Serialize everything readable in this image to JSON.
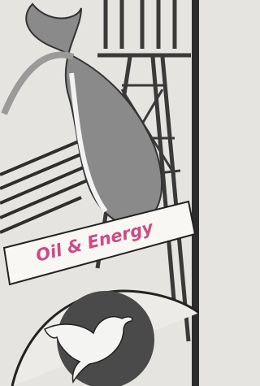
{
  "banner": {
    "text": "Oil & Energy"
  }
}
